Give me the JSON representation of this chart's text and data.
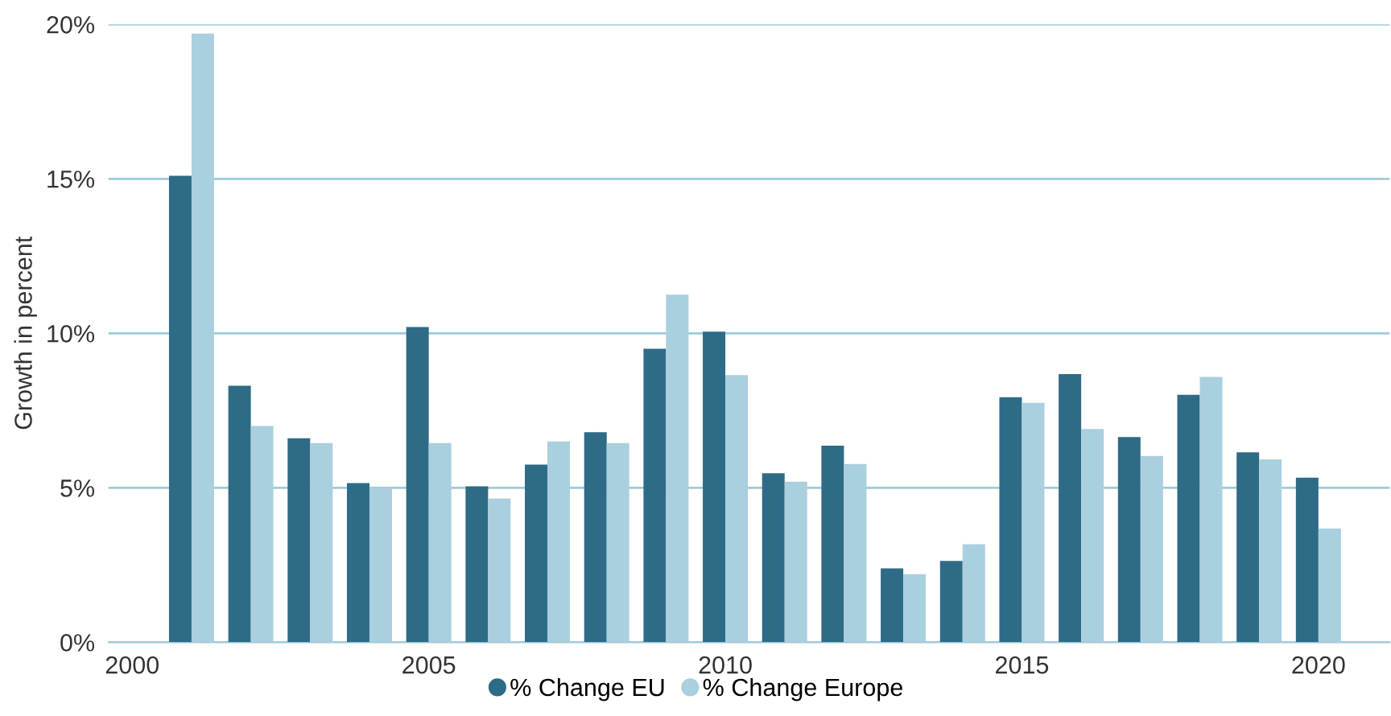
{
  "chart_data": {
    "type": "bar",
    "ylabel": "Growth in percent",
    "x": [
      2001,
      2002,
      2003,
      2004,
      2005,
      2006,
      2007,
      2008,
      2009,
      2010,
      2011,
      2012,
      2013,
      2014,
      2015,
      2016,
      2017,
      2018,
      2019,
      2020
    ],
    "series": [
      {
        "name": "% Change EU",
        "color": "#2e6b87",
        "values": [
          15.1,
          8.3,
          6.6,
          5.15,
          10.2,
          5.05,
          5.75,
          6.8,
          9.5,
          10.05,
          5.47,
          6.36,
          2.39,
          2.63,
          7.93,
          8.68,
          6.64,
          8.01,
          6.15,
          5.33
        ]
      },
      {
        "name": "% Change Europe",
        "color": "#aacfdf",
        "values": [
          19.7,
          7.0,
          6.45,
          5.0,
          6.45,
          4.65,
          6.5,
          6.45,
          11.25,
          8.65,
          5.2,
          5.77,
          2.2,
          3.17,
          7.75,
          6.9,
          6.03,
          8.59,
          5.92,
          3.68
        ]
      }
    ],
    "xlim": [
      1999.6,
      2021.2
    ],
    "xticks": [
      2000,
      2005,
      2010,
      2015,
      2020
    ],
    "ylim": [
      0,
      20
    ],
    "yticks": [
      {
        "value": 0,
        "label": "0%"
      },
      {
        "value": 5,
        "label": "5%"
      },
      {
        "value": 10,
        "label": "10%"
      },
      {
        "value": 15,
        "label": "15%"
      },
      {
        "value": 20,
        "label": "20%"
      }
    ],
    "grid": "y",
    "legend": "bottom",
    "marker": "circle"
  }
}
